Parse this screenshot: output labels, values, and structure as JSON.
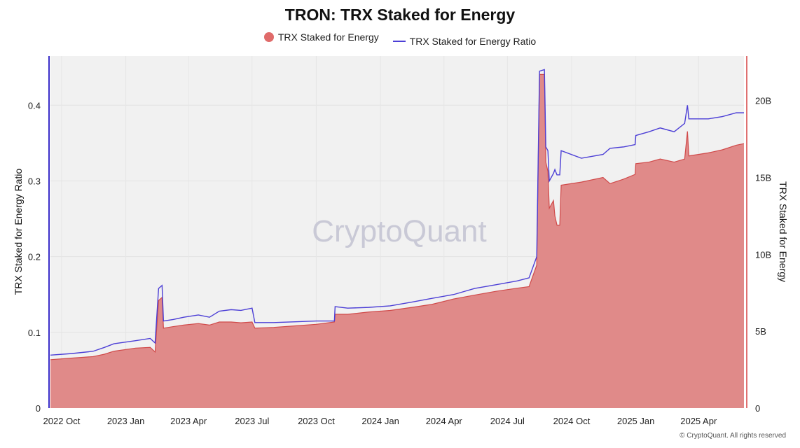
{
  "title": "TRON: TRX Staked for Energy",
  "legend": {
    "area_label": "TRX Staked for Energy",
    "line_label": "TRX Staked for Energy Ratio"
  },
  "watermark": "CryptoQuant",
  "copyright": "© CryptoQuant. All rights reserved",
  "chart_data": {
    "type": "area+line",
    "title": "TRON: TRX Staked for Energy",
    "x_ticks": [
      "2022 Oct",
      "2023 Jan",
      "2023 Apr",
      "2023 Jul",
      "2023 Oct",
      "2024 Jan",
      "2024 Apr",
      "2024 Jul",
      "2024 Oct",
      "2025 Jan",
      "2025 Apr"
    ],
    "left_axis": {
      "label": "TRX Staked for Energy Ratio",
      "ticks": [
        "0",
        "0.1",
        "0.2",
        "0.3",
        "0.4"
      ],
      "range": [
        0,
        0.465
      ]
    },
    "right_axis": {
      "label": "TRX Staked for Energy",
      "ticks": [
        "0",
        "5B",
        "10B",
        "15B",
        "20B"
      ],
      "range": [
        0,
        22.9
      ]
    },
    "x_range": [
      "2022-09-15",
      "2025-06-05"
    ],
    "grid": true,
    "legend_position": "top-center",
    "colors": {
      "area_fill": "#e08a89",
      "area_stroke": "#d04a4a",
      "line": "#4c3fd6",
      "plot_bg": "#f1f1f1",
      "legend_dot": "#e06b6a"
    },
    "series": [
      {
        "name": "TRX Staked for Energy",
        "kind": "area",
        "axis": "right",
        "unit": "B TRX",
        "points": [
          [
            "2022-09-15",
            3.15
          ],
          [
            "2022-10-15",
            3.25
          ],
          [
            "2022-11-15",
            3.35
          ],
          [
            "2022-12-01",
            3.5
          ],
          [
            "2022-12-15",
            3.7
          ],
          [
            "2023-01-15",
            3.9
          ],
          [
            "2023-02-05",
            3.95
          ],
          [
            "2023-02-12",
            3.65
          ],
          [
            "2023-02-17",
            7.0
          ],
          [
            "2023-02-22",
            7.2
          ],
          [
            "2023-02-24",
            5.2
          ],
          [
            "2023-03-10",
            5.3
          ],
          [
            "2023-03-25",
            5.4
          ],
          [
            "2023-04-15",
            5.5
          ],
          [
            "2023-05-01",
            5.4
          ],
          [
            "2023-05-15",
            5.6
          ],
          [
            "2023-06-01",
            5.6
          ],
          [
            "2023-06-15",
            5.55
          ],
          [
            "2023-07-01",
            5.6
          ],
          [
            "2023-07-05",
            5.2
          ],
          [
            "2023-08-01",
            5.25
          ],
          [
            "2023-09-01",
            5.35
          ],
          [
            "2023-10-01",
            5.45
          ],
          [
            "2023-10-27",
            5.6
          ],
          [
            "2023-10-28",
            6.1
          ],
          [
            "2023-11-15",
            6.1
          ],
          [
            "2023-12-15",
            6.25
          ],
          [
            "2024-01-15",
            6.35
          ],
          [
            "2024-02-15",
            6.55
          ],
          [
            "2024-03-15",
            6.75
          ],
          [
            "2024-04-15",
            7.1
          ],
          [
            "2024-05-15",
            7.35
          ],
          [
            "2024-06-15",
            7.6
          ],
          [
            "2024-07-15",
            7.8
          ],
          [
            "2024-08-01",
            7.9
          ],
          [
            "2024-08-12",
            9.3
          ],
          [
            "2024-08-16",
            21.7
          ],
          [
            "2024-08-23",
            21.7
          ],
          [
            "2024-08-25",
            16.0
          ],
          [
            "2024-08-28",
            15.4
          ],
          [
            "2024-08-30",
            13.0
          ],
          [
            "2024-09-05",
            13.5
          ],
          [
            "2024-09-07",
            12.5
          ],
          [
            "2024-09-10",
            11.9
          ],
          [
            "2024-09-14",
            11.9
          ],
          [
            "2024-09-16",
            14.5
          ],
          [
            "2024-10-15",
            14.7
          ],
          [
            "2024-11-15",
            15.0
          ],
          [
            "2024-11-25",
            14.6
          ],
          [
            "2024-12-15",
            14.9
          ],
          [
            "2024-12-31",
            15.2
          ],
          [
            "2025-01-01",
            15.9
          ],
          [
            "2025-01-20",
            16.0
          ],
          [
            "2025-02-05",
            16.2
          ],
          [
            "2025-02-25",
            16.0
          ],
          [
            "2025-03-12",
            16.2
          ],
          [
            "2025-03-16",
            18.0
          ],
          [
            "2025-03-18",
            16.4
          ],
          [
            "2025-04-15",
            16.6
          ],
          [
            "2025-05-05",
            16.8
          ],
          [
            "2025-05-25",
            17.1
          ],
          [
            "2025-06-05",
            17.2
          ]
        ]
      },
      {
        "name": "TRX Staked for Energy Ratio",
        "kind": "line",
        "axis": "left",
        "points": [
          [
            "2022-09-15",
            0.07
          ],
          [
            "2022-10-15",
            0.072
          ],
          [
            "2022-11-15",
            0.075
          ],
          [
            "2022-12-01",
            0.08
          ],
          [
            "2022-12-15",
            0.085
          ],
          [
            "2023-01-15",
            0.089
          ],
          [
            "2023-02-05",
            0.092
          ],
          [
            "2023-02-12",
            0.086
          ],
          [
            "2023-02-17",
            0.158
          ],
          [
            "2023-02-22",
            0.162
          ],
          [
            "2023-02-24",
            0.115
          ],
          [
            "2023-03-10",
            0.117
          ],
          [
            "2023-03-25",
            0.12
          ],
          [
            "2023-04-15",
            0.123
          ],
          [
            "2023-05-01",
            0.12
          ],
          [
            "2023-05-15",
            0.128
          ],
          [
            "2023-06-01",
            0.13
          ],
          [
            "2023-06-15",
            0.129
          ],
          [
            "2023-07-01",
            0.132
          ],
          [
            "2023-07-05",
            0.113
          ],
          [
            "2023-08-01",
            0.113
          ],
          [
            "2023-09-01",
            0.114
          ],
          [
            "2023-10-01",
            0.115
          ],
          [
            "2023-10-27",
            0.115
          ],
          [
            "2023-10-28",
            0.134
          ],
          [
            "2023-11-15",
            0.132
          ],
          [
            "2023-12-15",
            0.133
          ],
          [
            "2024-01-15",
            0.135
          ],
          [
            "2024-02-15",
            0.14
          ],
          [
            "2024-03-15",
            0.145
          ],
          [
            "2024-04-15",
            0.15
          ],
          [
            "2024-05-15",
            0.158
          ],
          [
            "2024-06-15",
            0.163
          ],
          [
            "2024-07-15",
            0.168
          ],
          [
            "2024-08-01",
            0.172
          ],
          [
            "2024-08-12",
            0.2
          ],
          [
            "2024-08-16",
            0.445
          ],
          [
            "2024-08-23",
            0.447
          ],
          [
            "2024-08-25",
            0.345
          ],
          [
            "2024-08-28",
            0.34
          ],
          [
            "2024-08-30",
            0.3
          ],
          [
            "2024-09-05",
            0.31
          ],
          [
            "2024-09-07",
            0.315
          ],
          [
            "2024-09-10",
            0.308
          ],
          [
            "2024-09-14",
            0.308
          ],
          [
            "2024-09-16",
            0.34
          ],
          [
            "2024-10-15",
            0.33
          ],
          [
            "2024-11-15",
            0.335
          ],
          [
            "2024-11-25",
            0.343
          ],
          [
            "2024-12-15",
            0.345
          ],
          [
            "2024-12-31",
            0.348
          ],
          [
            "2025-01-01",
            0.36
          ],
          [
            "2025-01-20",
            0.365
          ],
          [
            "2025-02-05",
            0.37
          ],
          [
            "2025-02-25",
            0.365
          ],
          [
            "2025-03-12",
            0.376
          ],
          [
            "2025-03-16",
            0.4
          ],
          [
            "2025-03-18",
            0.382
          ],
          [
            "2025-04-15",
            0.382
          ],
          [
            "2025-05-05",
            0.385
          ],
          [
            "2025-05-25",
            0.39
          ],
          [
            "2025-06-05",
            0.39
          ]
        ]
      }
    ]
  }
}
